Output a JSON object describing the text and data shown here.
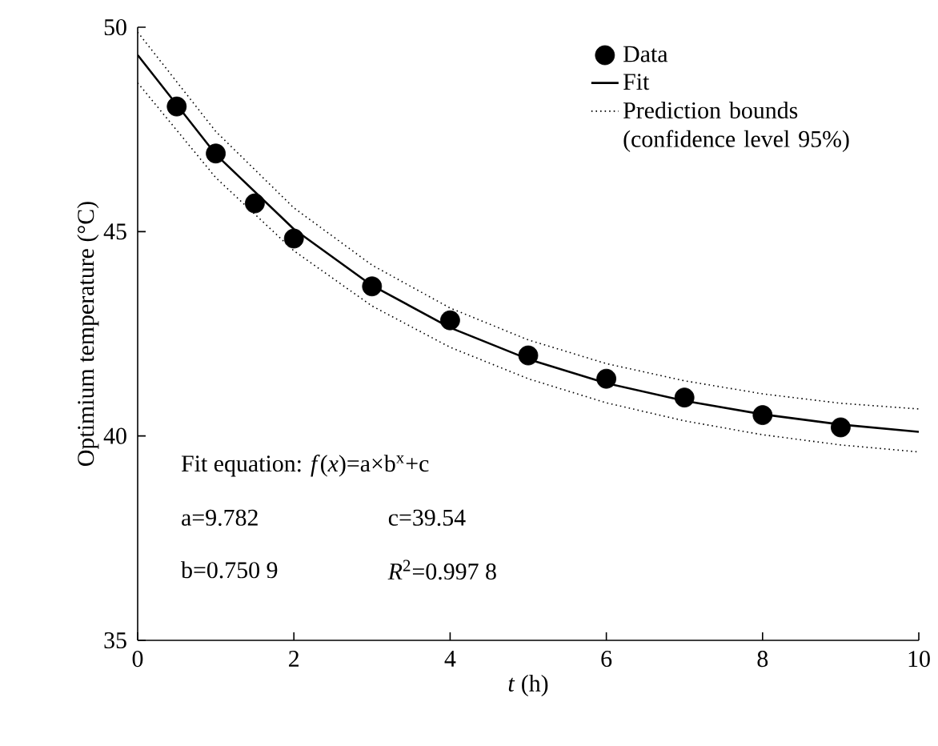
{
  "chart_data": {
    "type": "scatter",
    "xlabel": "*t* (h)",
    "ylabel": "Optimium temperature (°C)",
    "xlim": [
      0,
      10
    ],
    "ylim": [
      35,
      50
    ],
    "xticks": [
      0,
      2,
      4,
      6,
      8,
      10
    ],
    "yticks": [
      35,
      40,
      45,
      50
    ],
    "grid": false,
    "legend": "top right",
    "marker": "circle",
    "series": [
      {
        "name": "Data",
        "color": "#000000",
        "x": [
          0.5,
          1,
          1.5,
          2,
          3,
          4,
          5,
          6,
          7,
          8,
          9
        ],
        "values": [
          48.06,
          46.91,
          45.69,
          44.83,
          43.66,
          42.83,
          41.97,
          41.4,
          40.94,
          40.51,
          40.21
        ]
      },
      {
        "name": "Fit",
        "type": "line",
        "marker": "none",
        "line_style": "solid",
        "color": "#000000",
        "x": [
          0,
          1,
          2,
          3,
          4,
          5,
          6,
          7,
          8,
          9,
          10
        ],
        "values": [
          49.32,
          46.89,
          45.06,
          43.68,
          42.65,
          41.88,
          41.29,
          40.86,
          40.53,
          40.28,
          40.1
        ]
      },
      {
        "name": "Prediction bounds (confidence level 95%)",
        "type": "line",
        "marker": "none",
        "line_style": "dotted",
        "color": "#000000",
        "x": [
          0,
          1,
          2,
          3,
          4,
          5,
          6,
          7,
          8,
          9,
          10
        ],
        "values": [
          49.88,
          47.45,
          45.58,
          44.18,
          43.13,
          42.35,
          41.77,
          41.35,
          41.03,
          40.8,
          40.66
        ]
      },
      {
        "type": "line",
        "marker": "none",
        "line_style": "dotted",
        "color": "#000000",
        "x": [
          0,
          1,
          2,
          3,
          4,
          5,
          6,
          7,
          8,
          9,
          10
        ],
        "values": [
          48.64,
          46.32,
          44.53,
          43.18,
          42.17,
          41.4,
          40.81,
          40.37,
          40.03,
          39.78,
          39.61
        ]
      }
    ],
    "annotations": [
      "Fit equation: *f*(*x*)=a×b$^{x}$+c",
      "a=9.782",
      "c=39.54",
      "b=0.750 9",
      "*R*$^{2}$=0.997 8"
    ]
  }
}
